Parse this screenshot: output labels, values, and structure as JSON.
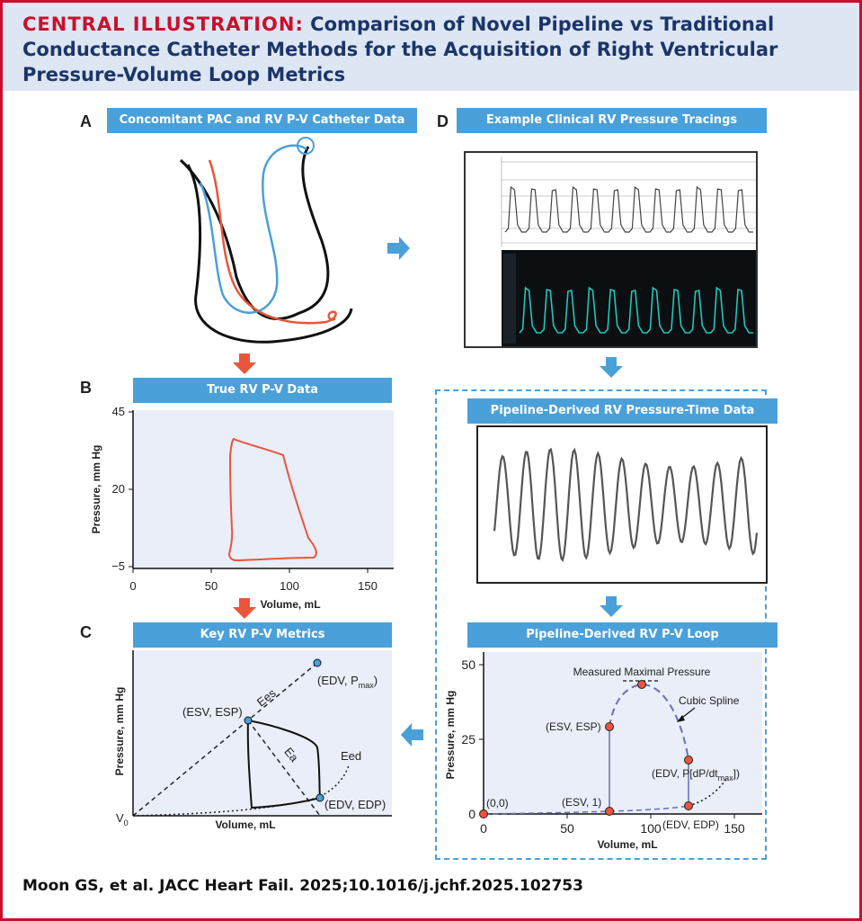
{
  "header": {
    "title_prefix": "CENTRAL ILLUSTRATION:",
    "title_main": "Comparison of Novel Pipeline vs Traditional Conductance Catheter Methods for the Acquisition of Right Ventricular Pressure-Volume Loop Metrics"
  },
  "panels": {
    "a": {
      "letter": "A",
      "title": "Concomitant PAC and RV P-V Catheter Data"
    },
    "b": {
      "letter": "B",
      "title": "True RV P-V Data",
      "ylabel": "Pressure, mm Hg",
      "xlabel": "Volume, mL",
      "yticks": [
        "45",
        "20",
        "−5"
      ],
      "xticks": [
        "0",
        "50",
        "100",
        "150"
      ]
    },
    "c": {
      "letter": "C",
      "title": "Key RV P-V Metrics",
      "ylabel": "Pressure, mm Hg",
      "xlabel": "Volume, mL",
      "v0": "V",
      "v0_sub": "0",
      "edv_pmax_pre": "(EDV, P",
      "edv_pmax_sub": "max",
      "edv_pmax_post": ")",
      "esv_esp": "(ESV, ESP)",
      "ees": "Ees",
      "ea": "Ea",
      "eed": "Eed",
      "edv_edp": "(EDV, EDP)"
    },
    "d": {
      "letter": "D",
      "title": "Example Clinical RV Pressure Tracings"
    },
    "e": {
      "title": "Pipeline-Derived RV Pressure-Time Data"
    },
    "f": {
      "title": "Pipeline-Derived RV P-V Loop",
      "ylabel": "Pressure, mm Hg",
      "xlabel": "Volume, mL",
      "yticks": [
        "50",
        "25",
        "0"
      ],
      "xticks": [
        "0",
        "50",
        "100",
        "150"
      ],
      "measured_max": "Measured Maximal Pressure",
      "cubic_spline": "Cubic Spline",
      "esv_esp": "(ESV, ESP)",
      "origin": "(0,0)",
      "esv_1": "(ESV, 1)",
      "edv_dpdt_pre": "(EDV, P[dP/dt",
      "edv_dpdt_sub": "max",
      "edv_dpdt_post": "])",
      "edv_edp": "(EDV, EDP)"
    }
  },
  "citation": "Moon GS, et al. JACC Heart Fail. 2025;10.1016/j.jchf.2025.102753",
  "colors": {
    "border": "#c8102e",
    "header_bg": "#dde6f3",
    "title_navy": "#1b3569",
    "banner_blue": "#4aa0d9",
    "arrow_red": "#e8553b",
    "loop_red": "#e8553b",
    "plot_bg": "#e9eef8",
    "teal_trace": "#22c7b8",
    "spline_purple": "#6a6fb3",
    "point_fill": "#e8553b",
    "point_blue": "#4aa0d9"
  },
  "icons": {
    "flow_arrow_down_red": "arrow-down-red",
    "flow_arrow_down_blue": "arrow-down-blue",
    "flow_arrow_right_blue": "arrow-right-blue",
    "flow_arrow_left_blue": "arrow-left-blue"
  }
}
